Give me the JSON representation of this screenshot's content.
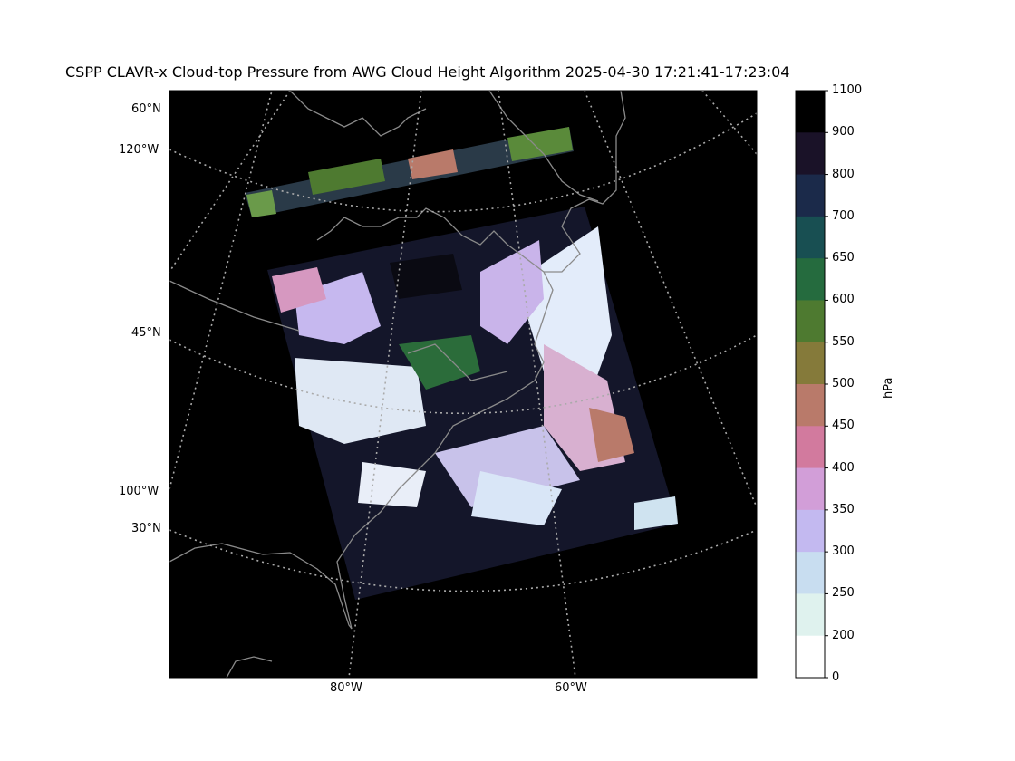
{
  "title": "CSPP CLAVR-x Cloud-top Pressure from AWG Cloud Height Algorithm 2025-04-30 17:21:41-17:23:04",
  "map": {
    "lat_labels": [
      "60°N",
      "45°N",
      "30°N"
    ],
    "lon_labels_left": [
      "120°W",
      "100°W"
    ],
    "lon_labels_bottom": [
      "80°W",
      "60°W"
    ]
  },
  "colorbar": {
    "label": "hPa",
    "ticks": [
      "1100",
      "900",
      "800",
      "700",
      "650",
      "600",
      "550",
      "500",
      "450",
      "400",
      "350",
      "300",
      "250",
      "200",
      "0"
    ],
    "colors": [
      "#000000",
      "#1a1228",
      "#1b2a4a",
      "#184f52",
      "#256b3e",
      "#4e7a30",
      "#857a3a",
      "#b97a6a",
      "#d27a9e",
      "#d29ed8",
      "#c3b9f0",
      "#c8ddf0",
      "#dff2ee",
      "#ffffff"
    ]
  }
}
